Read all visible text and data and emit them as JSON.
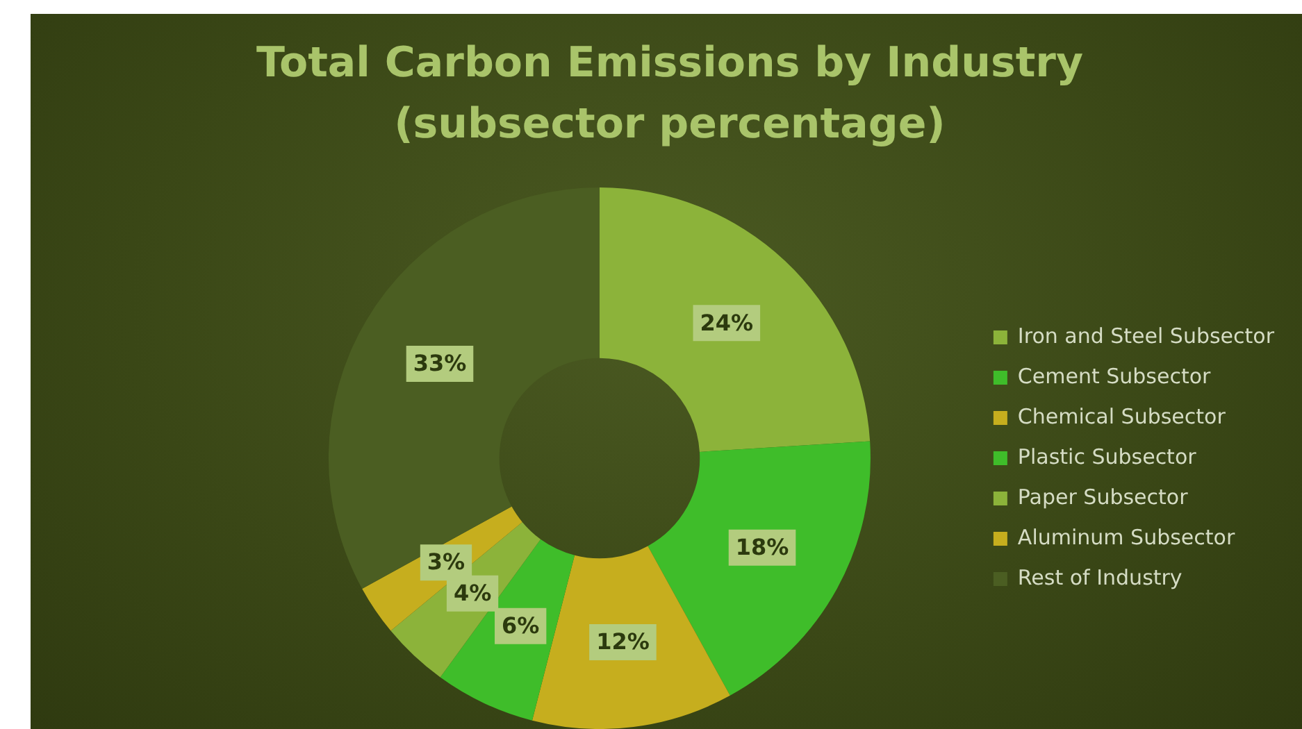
{
  "chart_data": {
    "type": "donut",
    "title": "Total Carbon Emissions by Industry (subsector percentage)",
    "categories": [
      "Iron and Steel Subsector",
      "Cement Subsector",
      "Chemical Subsector",
      "Plastic Subsector",
      "Paper Subsector",
      "Aluminum Subsector",
      "Rest of Industry"
    ],
    "values": [
      24,
      18,
      12,
      6,
      4,
      3,
      33
    ],
    "colors": [
      "#8cb33a",
      "#3fbd2a",
      "#c6ae1e",
      "#3fbd2a",
      "#8cb33a",
      "#c6ae1e",
      "#4b5e22"
    ],
    "value_labels": [
      "24%",
      "18%",
      "12%",
      "6%",
      "4%",
      "3%",
      "33%"
    ],
    "legend": "right"
  }
}
